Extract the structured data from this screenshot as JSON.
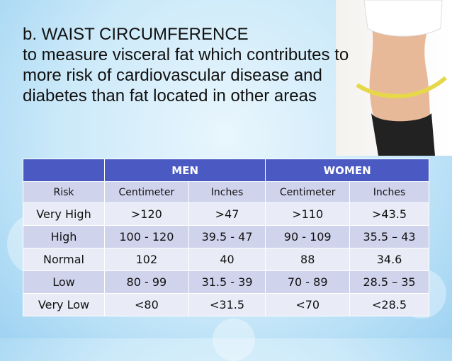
{
  "header": {
    "title": "b. WAIST CIRCUMFERENCE",
    "lines": [
      "to measure visceral fat which contributes to",
      "more risk of cardiovascular disease and",
      "diabetes than fat located in other areas"
    ]
  },
  "table": {
    "groups": [
      "MEN",
      "WOMEN"
    ],
    "columns": [
      "Risk",
      "Centimeter",
      "Inches",
      "Centimeter",
      "Inches"
    ],
    "rows": [
      [
        "Very High",
        ">120",
        ">47",
        ">110",
        ">43.5"
      ],
      [
        "High",
        "100 - 120",
        "39.5 - 47",
        "90 - 109",
        "35.5 – 43"
      ],
      [
        "Normal",
        "102",
        "40",
        "88",
        "34.6"
      ],
      [
        "Low",
        "80 - 99",
        "31.5 - 39",
        "70 - 89",
        "28.5 – 35"
      ],
      [
        "Very Low",
        "<80",
        "<31.5",
        "<70",
        "<28.5"
      ]
    ]
  }
}
